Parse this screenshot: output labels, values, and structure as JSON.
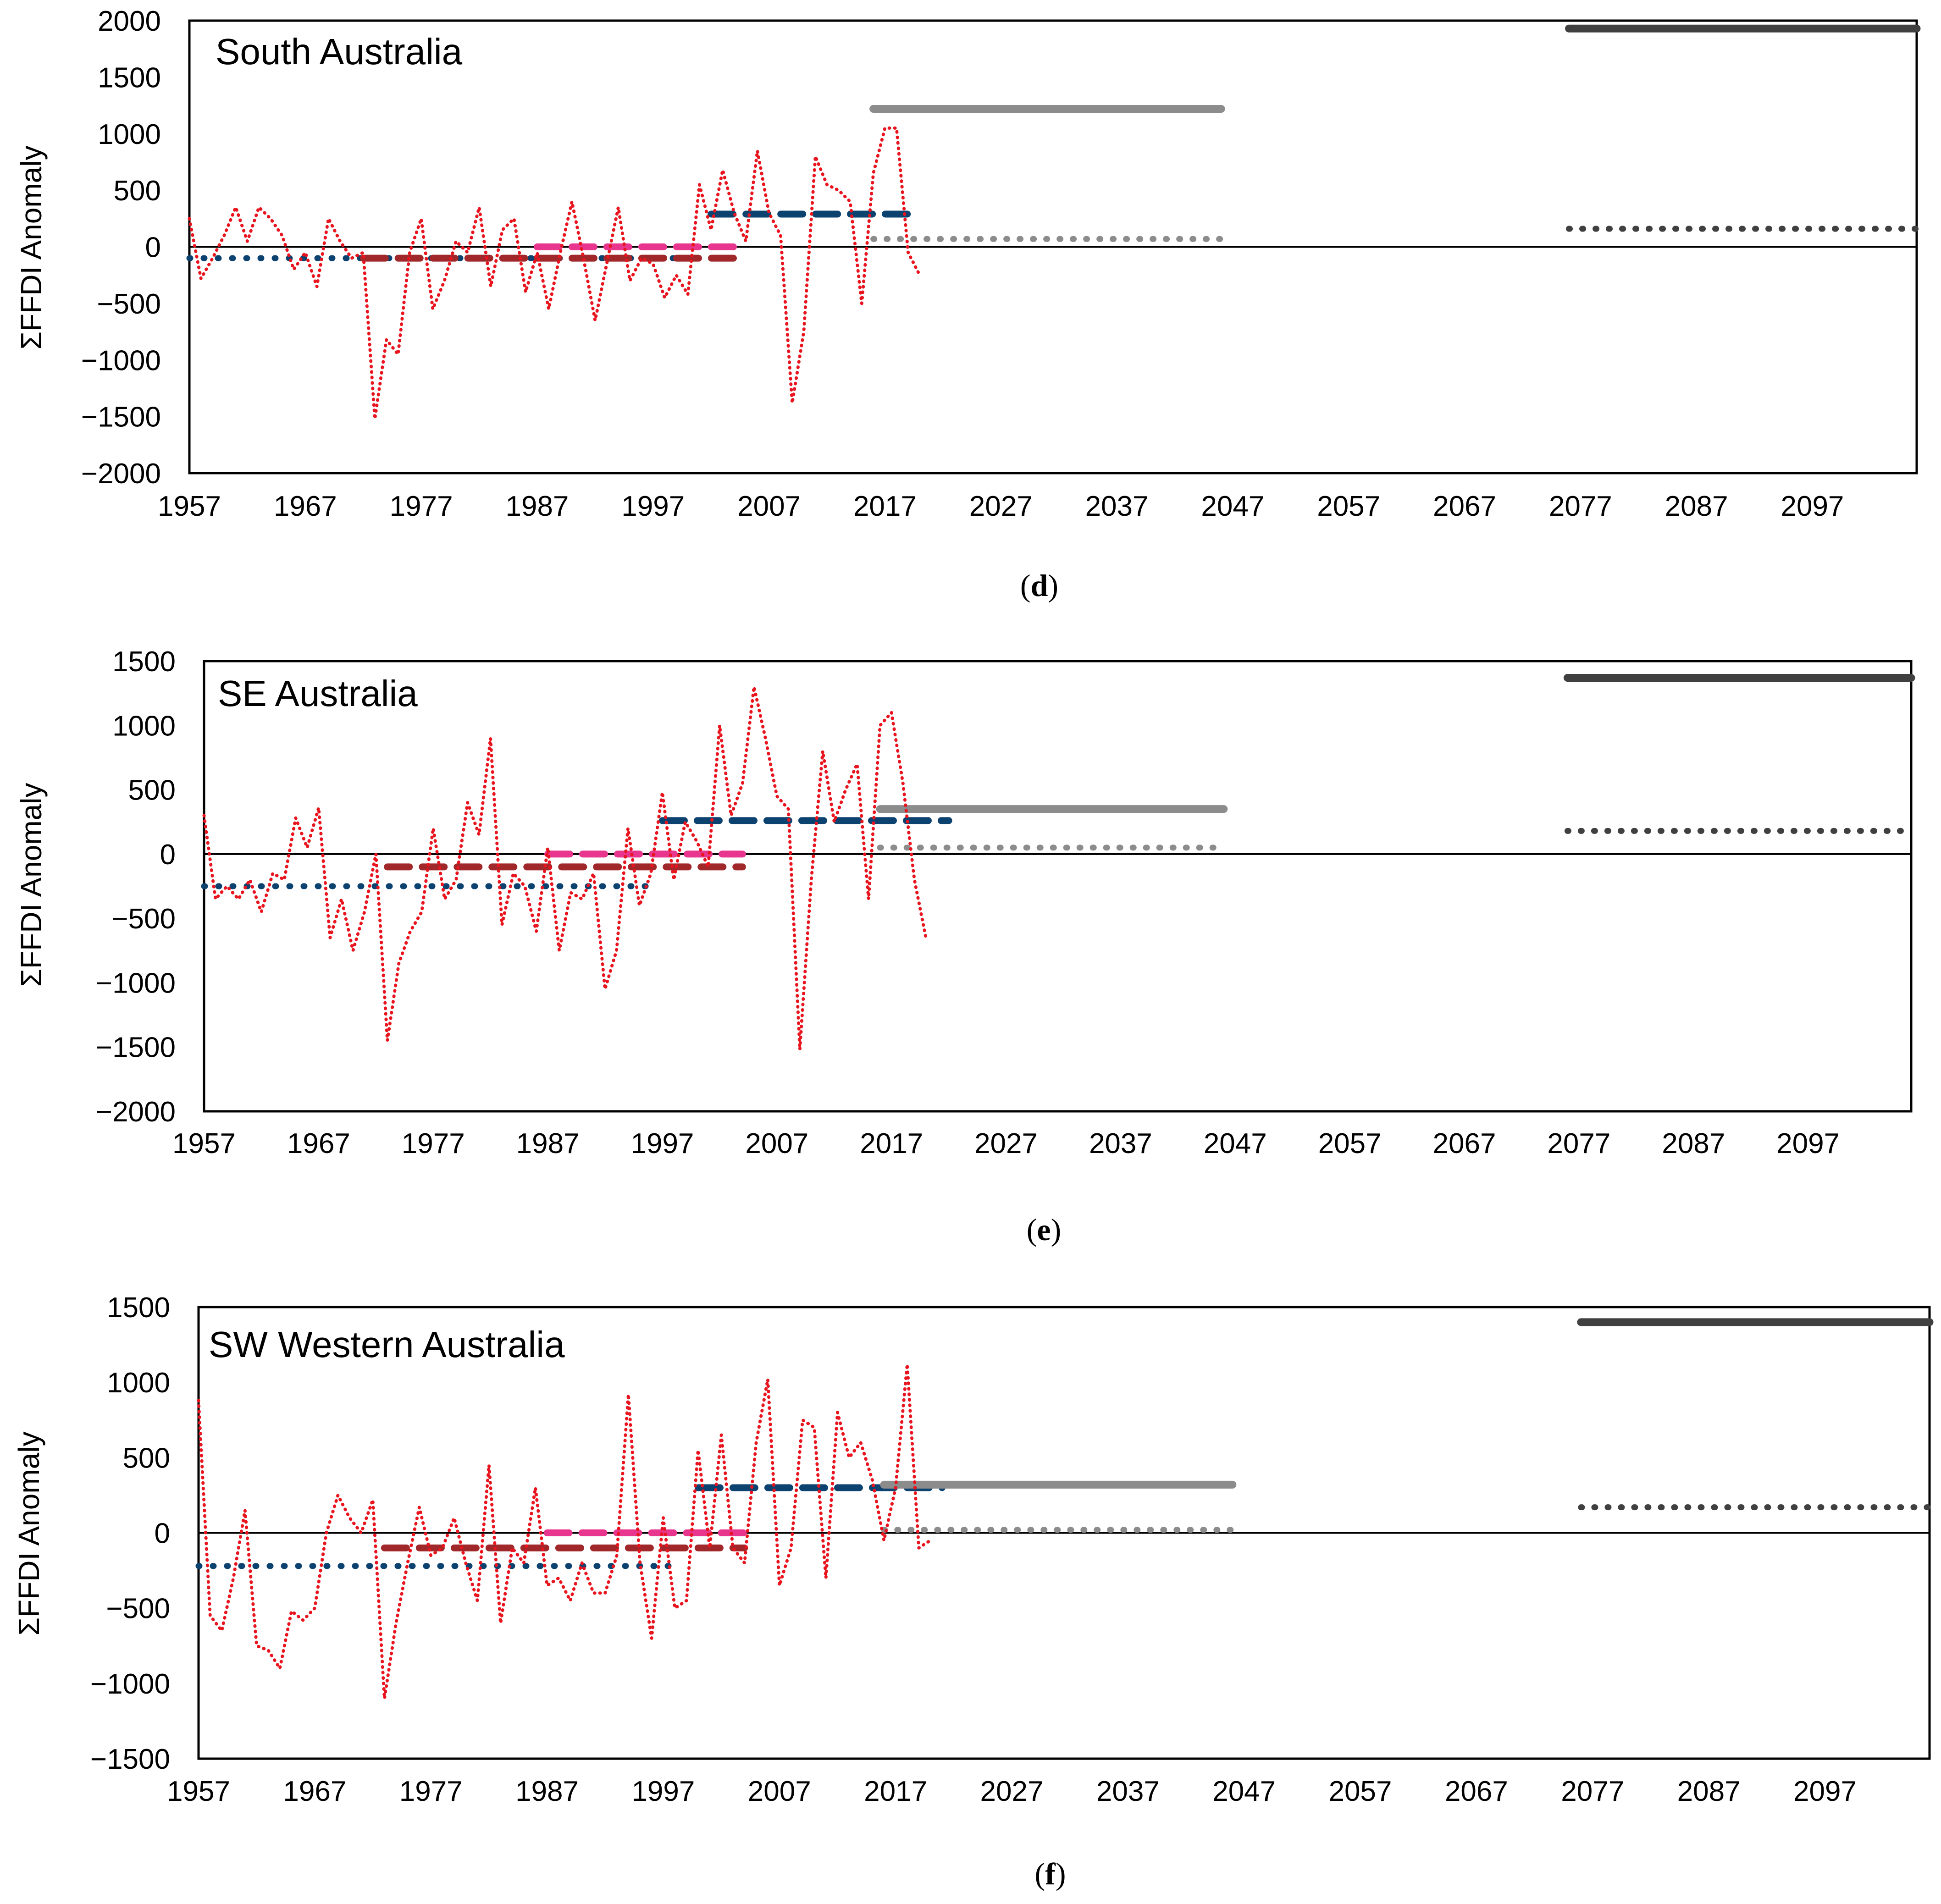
{
  "chart_data": [
    {
      "type": "line",
      "panel_label": "d",
      "title": "South Australia",
      "ylabel": "ΣFFDI Anomaly",
      "xlabel": "",
      "xlim": [
        1957,
        2106
      ],
      "ylim": [
        -2000,
        2000
      ],
      "x_ticks": [
        1957,
        1967,
        1977,
        1987,
        1997,
        2007,
        2017,
        2027,
        2037,
        2047,
        2057,
        2067,
        2077,
        2087,
        2097
      ],
      "x_tick_labels": [
        "1957",
        "1967",
        "1977",
        "1987",
        "1997",
        "2007",
        "2017",
        "2027",
        "2037",
        "2047",
        "2057",
        "2067",
        "2077",
        "2087",
        "2097"
      ],
      "y_ticks": [
        2000,
        1500,
        1000,
        500,
        0,
        -500,
        -1000,
        -1500,
        -2000
      ],
      "y_tick_labels": [
        "2000",
        "1500",
        "1000",
        "500",
        "0",
        "−500",
        "−1000",
        "−1500",
        "−2000"
      ],
      "grid": false,
      "legend": "none",
      "annual": {
        "x": [
          1957,
          1958,
          1959,
          1960,
          1961,
          1962,
          1963,
          1964,
          1965,
          1966,
          1967,
          1968,
          1969,
          1970,
          1971,
          1972,
          1973,
          1974,
          1975,
          1976,
          1977,
          1978,
          1979,
          1980,
          1981,
          1982,
          1983,
          1984,
          1985,
          1986,
          1987,
          1988,
          1989,
          1990,
          1991,
          1992,
          1993,
          1994,
          1995,
          1996,
          1997,
          1998,
          1999,
          2000,
          2001,
          2002,
          2003,
          2004,
          2005,
          2006,
          2007,
          2008,
          2009,
          2010,
          2011,
          2012,
          2013,
          2014,
          2015,
          2016,
          2017,
          2018,
          2019,
          2020
        ],
        "y": [
          250,
          -280,
          -100,
          100,
          350,
          50,
          350,
          250,
          100,
          -200,
          -50,
          -350,
          250,
          50,
          -100,
          -50,
          -1520,
          -820,
          -950,
          -50,
          250,
          -550,
          -300,
          50,
          -50,
          350,
          -350,
          150,
          250,
          -400,
          -50,
          -550,
          -50,
          400,
          -100,
          -650,
          -150,
          350,
          -300,
          -100,
          -150,
          -450,
          -250,
          -420,
          550,
          150,
          680,
          300,
          50,
          850,
          300,
          100,
          -1380,
          -750,
          800,
          550,
          500,
          400,
          -500,
          650,
          1050,
          1050,
          -50,
          -250
        ]
      },
      "series": [
        {
          "name": "base",
          "style": "navy-dotted",
          "x": [
            1957,
            2000
          ],
          "y": -100
        },
        {
          "name": "segment-maroon-1",
          "style": "maroon-dashed",
          "x": [
            1972,
            1987
          ],
          "y": -100
        },
        {
          "name": "segment-maroon-2",
          "style": "maroon-dashed",
          "x": [
            1987,
            2004
          ],
          "y": -100
        },
        {
          "name": "segment-pink",
          "style": "pink-dashed",
          "x": [
            1987,
            2004
          ],
          "y": 0
        },
        {
          "name": "segment-navy",
          "style": "navy-dashed",
          "x": [
            2002,
            2020
          ],
          "y": 290
        },
        {
          "name": "near-future-high",
          "style": "grey-solid",
          "x": [
            2016,
            2046
          ],
          "y": 1220
        },
        {
          "name": "near-future-low",
          "style": "grey-dotted",
          "x": [
            2016,
            2046
          ],
          "y": 70
        },
        {
          "name": "far-future-high",
          "style": "dark-solid",
          "x": [
            2076,
            2106
          ],
          "y": 1930
        },
        {
          "name": "far-future-low",
          "style": "dark-dotted",
          "x": [
            2076,
            2106
          ],
          "y": 160
        }
      ]
    },
    {
      "type": "line",
      "panel_label": "e",
      "title": "SE Australia",
      "ylabel": "ΣFFDI Anomaly",
      "xlabel": "",
      "xlim": [
        1957,
        2106
      ],
      "ylim": [
        -2000,
        1500
      ],
      "x_ticks": [
        1957,
        1967,
        1977,
        1987,
        1997,
        2007,
        2017,
        2027,
        2037,
        2047,
        2057,
        2067,
        2077,
        2087,
        2097
      ],
      "x_tick_labels": [
        "1957",
        "1967",
        "1977",
        "1987",
        "1997",
        "2007",
        "2017",
        "2027",
        "2037",
        "2047",
        "2057",
        "2067",
        "2077",
        "2087",
        "2097"
      ],
      "y_ticks": [
        1500,
        1000,
        500,
        0,
        -500,
        -1000,
        -1500,
        -2000
      ],
      "y_tick_labels": [
        "1500",
        "1000",
        "500",
        "0",
        "−500",
        "−1000",
        "−1500",
        "−2000"
      ],
      "grid": false,
      "legend": "none",
      "annual": {
        "x": [
          1957,
          1958,
          1959,
          1960,
          1961,
          1962,
          1963,
          1964,
          1965,
          1966,
          1967,
          1968,
          1969,
          1970,
          1971,
          1972,
          1973,
          1974,
          1975,
          1976,
          1977,
          1978,
          1979,
          1980,
          1981,
          1982,
          1983,
          1984,
          1985,
          1986,
          1987,
          1988,
          1989,
          1990,
          1991,
          1992,
          1993,
          1994,
          1995,
          1996,
          1997,
          1998,
          1999,
          2000,
          2001,
          2002,
          2003,
          2004,
          2005,
          2006,
          2007,
          2008,
          2009,
          2010,
          2011,
          2012,
          2013,
          2014,
          2015,
          2016,
          2017,
          2018,
          2019,
          2020
        ],
        "y": [
          300,
          -350,
          -250,
          -350,
          -200,
          -450,
          -150,
          -200,
          280,
          50,
          360,
          -650,
          -350,
          -750,
          -450,
          0,
          -1450,
          -850,
          -600,
          -450,
          200,
          -350,
          -200,
          400,
          150,
          900,
          -550,
          -150,
          -250,
          -600,
          50,
          -750,
          -300,
          -350,
          -150,
          -1050,
          -750,
          200,
          -400,
          -150,
          480,
          -200,
          250,
          100,
          -100,
          1000,
          300,
          550,
          1300,
          900,
          450,
          350,
          -1520,
          -200,
          800,
          250,
          500,
          700,
          -350,
          1000,
          1100,
          550,
          -200,
          -650
        ]
      },
      "series": [
        {
          "name": "base",
          "style": "navy-dotted",
          "x": [
            1957,
            1996
          ],
          "y": -250
        },
        {
          "name": "segment-maroon",
          "style": "maroon-dashed",
          "x": [
            1973,
            2004
          ],
          "y": -100
        },
        {
          "name": "segment-pink",
          "style": "pink-dashed",
          "x": [
            1987,
            2004
          ],
          "y": 0
        },
        {
          "name": "segment-navy",
          "style": "navy-dashed",
          "x": [
            1997,
            2022
          ],
          "y": 260
        },
        {
          "name": "near-future-high",
          "style": "grey-solid",
          "x": [
            2016,
            2046
          ],
          "y": 350
        },
        {
          "name": "near-future-low",
          "style": "grey-dotted",
          "x": [
            2016,
            2046
          ],
          "y": 50
        },
        {
          "name": "far-future-high",
          "style": "dark-solid",
          "x": [
            2076,
            2106
          ],
          "y": 1370
        },
        {
          "name": "far-future-low",
          "style": "dark-dotted",
          "x": [
            2076,
            2106
          ],
          "y": 180
        }
      ]
    },
    {
      "type": "line",
      "panel_label": "f",
      "title": "SW Western Australia",
      "ylabel": "ΣFFDI Anomaly",
      "xlabel": "",
      "xlim": [
        1957,
        2106
      ],
      "ylim": [
        -1500,
        1500
      ],
      "x_ticks": [
        1957,
        1967,
        1977,
        1987,
        1997,
        2007,
        2017,
        2027,
        2037,
        2047,
        2057,
        2067,
        2077,
        2087,
        2097
      ],
      "x_tick_labels": [
        "1957",
        "1967",
        "1977",
        "1987",
        "1997",
        "2007",
        "2017",
        "2027",
        "2037",
        "2047",
        "2057",
        "2067",
        "2077",
        "2087",
        "2097"
      ],
      "y_ticks": [
        1500,
        1000,
        500,
        0,
        -500,
        -1000,
        -1500
      ],
      "y_tick_labels": [
        "1500",
        "1000",
        "500",
        "0",
        "−500",
        "−1000",
        "−1500"
      ],
      "grid": false,
      "legend": "none",
      "annual": {
        "x": [
          1957,
          1958,
          1959,
          1960,
          1961,
          1962,
          1963,
          1964,
          1965,
          1966,
          1967,
          1968,
          1969,
          1970,
          1971,
          1972,
          1973,
          1974,
          1975,
          1976,
          1977,
          1978,
          1979,
          1980,
          1981,
          1982,
          1983,
          1984,
          1985,
          1986,
          1987,
          1988,
          1989,
          1990,
          1991,
          1992,
          1993,
          1994,
          1995,
          1996,
          1997,
          1998,
          1999,
          2000,
          2001,
          2002,
          2003,
          2004,
          2005,
          2006,
          2007,
          2008,
          2009,
          2010,
          2011,
          2012,
          2013,
          2014,
          2015,
          2016,
          2017,
          2018,
          2019,
          2020
        ],
        "y": [
          880,
          -550,
          -650,
          -300,
          150,
          -750,
          -780,
          -900,
          -520,
          -580,
          -500,
          0,
          250,
          100,
          0,
          220,
          -1100,
          -600,
          -200,
          170,
          -150,
          -100,
          100,
          -200,
          -450,
          450,
          -600,
          -100,
          -200,
          300,
          -350,
          -300,
          -450,
          -200,
          -400,
          -400,
          -150,
          920,
          -200,
          -700,
          100,
          -500,
          -450,
          550,
          -100,
          650,
          -100,
          -200,
          600,
          1020,
          -350,
          -100,
          750,
          700,
          -300,
          800,
          500,
          600,
          350,
          -50,
          300,
          1120,
          -100,
          -50
        ]
      },
      "series": [
        {
          "name": "base",
          "style": "navy-dotted",
          "x": [
            1957,
            1998
          ],
          "y": -220
        },
        {
          "name": "segment-maroon",
          "style": "maroon-dashed",
          "x": [
            1973,
            2004
          ],
          "y": -100
        },
        {
          "name": "segment-pink",
          "style": "pink-dashed",
          "x": [
            1987,
            2004
          ],
          "y": 0
        },
        {
          "name": "segment-navy",
          "style": "navy-dashed",
          "x": [
            2000,
            2021
          ],
          "y": 300
        },
        {
          "name": "near-future-high",
          "style": "grey-solid",
          "x": [
            2016,
            2046
          ],
          "y": 320
        },
        {
          "name": "near-future-low",
          "style": "grey-dotted",
          "x": [
            2016,
            2046
          ],
          "y": 20
        },
        {
          "name": "far-future-high",
          "style": "dark-solid",
          "x": [
            2076,
            2106
          ],
          "y": 1400
        },
        {
          "name": "far-future-low",
          "style": "dark-dotted",
          "x": [
            2076,
            2106
          ],
          "y": 170
        }
      ]
    }
  ],
  "colors": {
    "annual": "#e8141e",
    "navy": "#0c4270",
    "maroon": "#a0282a",
    "pink": "#e8368f",
    "grey": "#8c8c8c",
    "dark": "#404040",
    "axis": "#000000",
    "tick_text": "#000000"
  }
}
